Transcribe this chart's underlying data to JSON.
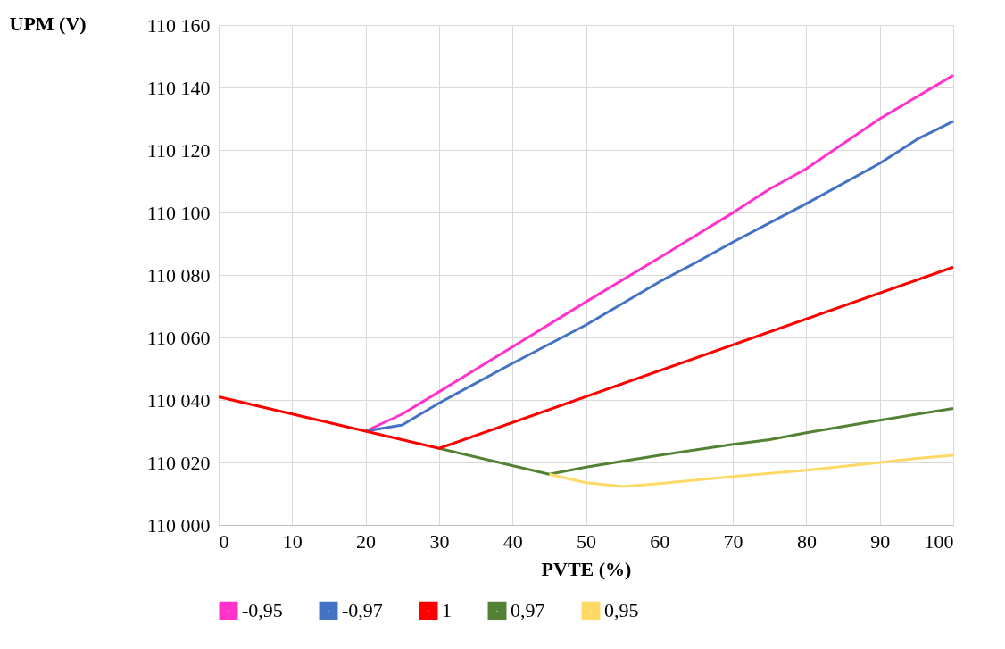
{
  "chart_data": {
    "type": "line",
    "xlabel": "PVTE (%)",
    "ylabel": "UPM (V)",
    "xlim": [
      0,
      100
    ],
    "xticks": [
      0,
      10,
      20,
      30,
      40,
      50,
      60,
      70,
      80,
      90,
      100
    ],
    "ylim": [
      110000,
      110160
    ],
    "yticks": [
      {
        "value": 110000,
        "label": "110 000"
      },
      {
        "value": 110020,
        "label": "110 020"
      },
      {
        "value": 110040,
        "label": "110 040"
      },
      {
        "value": 110060,
        "label": "110 060"
      },
      {
        "value": 110080,
        "label": "110 080"
      },
      {
        "value": 110100,
        "label": "110 100"
      },
      {
        "value": 110120,
        "label": "110 120"
      },
      {
        "value": 110140,
        "label": "110 140"
      },
      {
        "value": 110160,
        "label": "110 160"
      }
    ],
    "grid": true,
    "legend": "bottom",
    "marker": "none",
    "line_style": "solid",
    "series": [
      {
        "name": "-0,95",
        "color": "#ff33cc",
        "x": [
          20,
          25,
          30,
          40,
          50,
          60,
          70,
          75,
          80,
          90,
          100
        ],
        "values": [
          110030,
          110035.5,
          110042.6,
          110057,
          110071.4,
          110085.5,
          110099.9,
          110107.5,
          110114,
          110130,
          110143.9
        ]
      },
      {
        "name": "-0,97",
        "color": "#4472c4",
        "x": [
          20,
          25,
          30,
          40,
          50,
          60,
          65,
          70,
          80,
          90,
          95,
          100
        ],
        "values": [
          110030,
          110032,
          110039,
          110051.7,
          110064,
          110077.8,
          110084,
          110090.5,
          110102.8,
          110115.7,
          110123.3,
          110129.2
        ]
      },
      {
        "name": "1",
        "color": "#ff0000",
        "x": [
          0,
          10,
          20,
          30,
          100
        ],
        "values": [
          110041,
          110035.5,
          110030,
          110024.5,
          110082.5
        ]
      },
      {
        "name": "0,97",
        "color": "#548235",
        "x": [
          30,
          45,
          50,
          60,
          70,
          75,
          80,
          90,
          100
        ],
        "values": [
          110024.5,
          110016.2,
          110018.5,
          110022.3,
          110025.8,
          110027.3,
          110029.5,
          110033.5,
          110037.3
        ]
      },
      {
        "name": "0,95",
        "color": "#ffd966",
        "x": [
          45,
          50,
          55,
          60,
          70,
          80,
          90,
          95,
          100
        ],
        "values": [
          110016.2,
          110013.5,
          110012.3,
          110013.2,
          110015.5,
          110017.5,
          110020,
          110021.3,
          110022.3
        ]
      }
    ]
  }
}
